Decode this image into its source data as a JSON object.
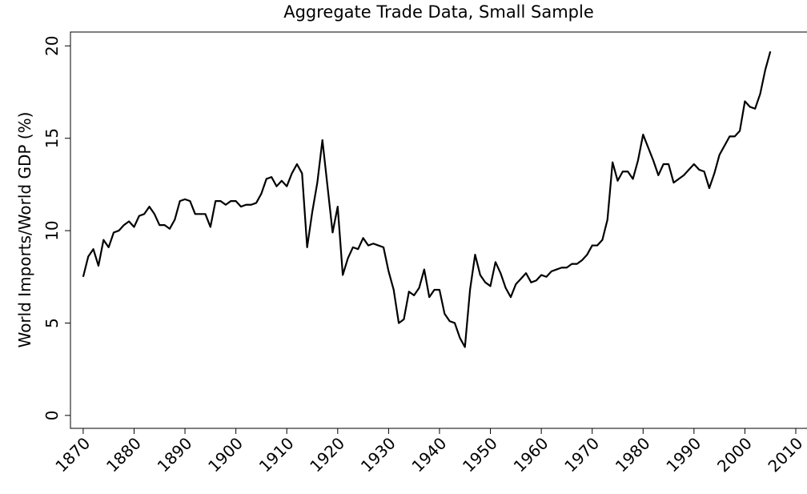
{
  "chart_data": {
    "type": "line",
    "title": "Aggregate Trade Data, Small Sample",
    "y_label": "World Imports/World GDP (%)",
    "x": [
      1870,
      1871,
      1872,
      1873,
      1874,
      1875,
      1876,
      1877,
      1878,
      1879,
      1880,
      1881,
      1882,
      1883,
      1884,
      1885,
      1886,
      1887,
      1888,
      1889,
      1890,
      1891,
      1892,
      1893,
      1894,
      1895,
      1896,
      1897,
      1898,
      1899,
      1900,
      1901,
      1902,
      1903,
      1904,
      1905,
      1906,
      1907,
      1908,
      1909,
      1910,
      1911,
      1912,
      1913,
      1914,
      1915,
      1916,
      1917,
      1918,
      1919,
      1920,
      1921,
      1922,
      1923,
      1924,
      1925,
      1926,
      1927,
      1928,
      1929,
      1930,
      1931,
      1932,
      1933,
      1934,
      1935,
      1936,
      1937,
      1938,
      1939,
      1940,
      1941,
      1942,
      1943,
      1944,
      1945,
      1946,
      1947,
      1948,
      1949,
      1950,
      1951,
      1952,
      1953,
      1954,
      1955,
      1956,
      1957,
      1958,
      1959,
      1960,
      1961,
      1962,
      1963,
      1964,
      1965,
      1966,
      1967,
      1968,
      1969,
      1970,
      1971,
      1972,
      1973,
      1974,
      1975,
      1976,
      1977,
      1978,
      1979,
      1980,
      1981,
      1982,
      1983,
      1984,
      1985,
      1986,
      1987,
      1988,
      1989,
      1990,
      1991,
      1992,
      1993,
      1994,
      1995,
      1996,
      1997,
      1998,
      1999,
      2000,
      2001,
      2002,
      2003,
      2004,
      2005
    ],
    "series": [
      {
        "color": "#000000",
        "values": [
          7.5,
          8.6,
          9.0,
          8.1,
          9.5,
          9.1,
          9.9,
          10.0,
          10.3,
          10.5,
          10.2,
          10.8,
          10.9,
          11.3,
          10.9,
          10.3,
          10.3,
          10.1,
          10.6,
          11.6,
          11.7,
          11.6,
          10.9,
          10.9,
          10.9,
          10.2,
          11.6,
          11.6,
          11.4,
          11.6,
          11.6,
          11.3,
          11.4,
          11.4,
          11.5,
          12.0,
          12.8,
          12.9,
          12.4,
          12.7,
          12.4,
          13.1,
          13.6,
          13.1,
          9.1,
          11.0,
          12.6,
          14.9,
          12.4,
          9.9,
          11.3,
          7.6,
          8.5,
          9.1,
          9.0,
          9.6,
          9.2,
          9.3,
          9.2,
          9.1,
          7.8,
          6.8,
          5.0,
          5.2,
          6.7,
          6.5,
          6.9,
          7.9,
          6.4,
          6.8,
          6.8,
          5.5,
          5.1,
          5.0,
          4.2,
          3.7,
          6.8,
          8.7,
          7.6,
          7.2,
          7.0,
          8.3,
          7.7,
          6.9,
          6.4,
          7.1,
          7.4,
          7.7,
          7.2,
          7.3,
          7.6,
          7.5,
          7.8,
          7.9,
          8.0,
          8.0,
          8.2,
          8.2,
          8.4,
          8.7,
          9.2,
          9.2,
          9.5,
          10.6,
          13.7,
          12.7,
          13.2,
          13.2,
          12.8,
          13.8,
          15.2,
          14.5,
          13.8,
          13.0,
          13.6,
          13.6,
          12.6,
          12.8,
          13.0,
          13.3,
          13.6,
          13.3,
          13.2,
          12.3,
          13.1,
          14.1,
          14.6,
          15.1,
          15.1,
          15.4,
          17.0,
          16.7,
          16.6,
          17.4,
          18.7,
          19.7
        ]
      }
    ],
    "xlim": [
      1867.5,
      2012.2
    ],
    "ylim": [
      -0.7,
      20.75
    ],
    "xticks": [
      1870,
      1880,
      1890,
      1900,
      1910,
      1920,
      1930,
      1940,
      1950,
      1960,
      1970,
      1980,
      1990,
      2000,
      2010
    ],
    "yticks": [
      0,
      5,
      10,
      15,
      20
    ]
  }
}
